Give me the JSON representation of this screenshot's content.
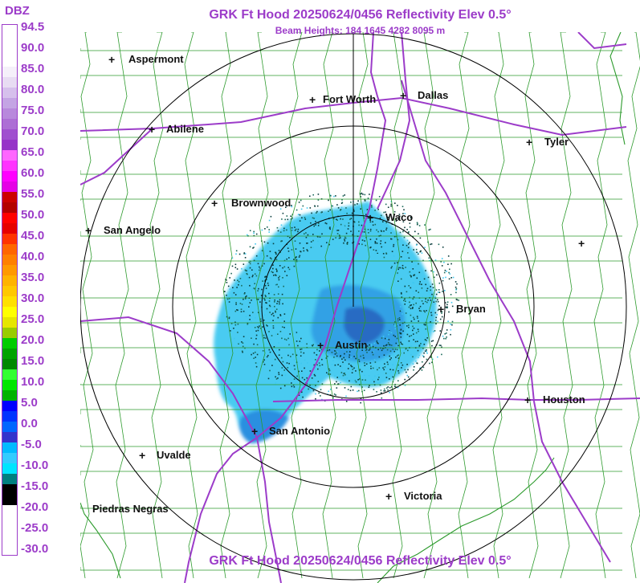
{
  "header": {
    "title": "GRK Ft Hood 20250624/0456 Reflectivity Elev 0.5°",
    "beam_heights": "Beam Heights: 184 1645 4282 8095 m",
    "footer_title": "GRK Ft Hood 20250624/0456 Reflectivity Elev 0.5°"
  },
  "legend": {
    "title": "DBZ",
    "ticks": [
      "94.5",
      "90.0",
      "85.0",
      "80.0",
      "75.0",
      "70.0",
      "65.0",
      "60.0",
      "55.0",
      "50.0",
      "45.0",
      "40.0",
      "35.0",
      "30.0",
      "25.0",
      "20.0",
      "15.0",
      "10.0",
      "5.0",
      "0.0",
      "-5.0",
      "-10.0",
      "-15.0",
      "-20.0",
      "-25.0",
      "-30.0"
    ],
    "swatches": [
      "#ffffff",
      "#ffffff",
      "#ffffff",
      "#ffffff",
      "#f5f0fa",
      "#e8dcf3",
      "#d6c0ec",
      "#c4a4e4",
      "#b888dc",
      "#ad6ed5",
      "#a050cf",
      "#9633c8",
      "#ff66ff",
      "#ff33ff",
      "#ff00ff",
      "#e600e6",
      "#cc0000",
      "#b30000",
      "#ff0000",
      "#e60000",
      "#ff3300",
      "#ff6600",
      "#ff8000",
      "#ff9900",
      "#ffb300",
      "#ffc800",
      "#ffe000",
      "#ffff00",
      "#e6e600",
      "#99cc00",
      "#00cc00",
      "#00a300",
      "#008800",
      "#33ff33",
      "#00e600",
      "#00b300",
      "#0000ff",
      "#0033ff",
      "#0066ff",
      "#3333cc",
      "#00bbff",
      "#33ccff",
      "#00e5ff",
      "#008080",
      "#000000",
      "#000000",
      "#ffffff",
      "#ffffff",
      "#ffffff",
      "#ffffff"
    ],
    "text_color": "#9c3cc9"
  },
  "colors": {
    "title": "#9c3cc9",
    "roads": "#9c3cc9",
    "counties": "#2c9a2c",
    "range_rings": "#000000",
    "echo_light": "#3ec8f0",
    "echo_mid": "#2a8fe0",
    "echo_dark": "#1e3ca8",
    "echo_clutter": "#0a3c3c"
  },
  "cities": [
    {
      "name": "Aspermont",
      "show_label": true
    },
    {
      "name": "Fort Worth",
      "show_label": true
    },
    {
      "name": "Dallas",
      "show_label": true
    },
    {
      "name": "Abilene",
      "show_label": true
    },
    {
      "name": "Tyler",
      "show_label": true
    },
    {
      "name": "Brownwood",
      "show_label": true
    },
    {
      "name": "Waco",
      "show_label": true
    },
    {
      "name": "San Angelo",
      "show_label": true
    },
    {
      "name": "Bryan",
      "show_label": true
    },
    {
      "name": "Austin",
      "show_label": true
    },
    {
      "name": "Houston",
      "show_label": true
    },
    {
      "name": "San Antonio",
      "show_label": true
    },
    {
      "name": "Uvalde",
      "show_label": true
    },
    {
      "name": "Victoria",
      "show_label": true
    },
    {
      "name": "Piedras Negras",
      "show_label": true
    }
  ]
}
